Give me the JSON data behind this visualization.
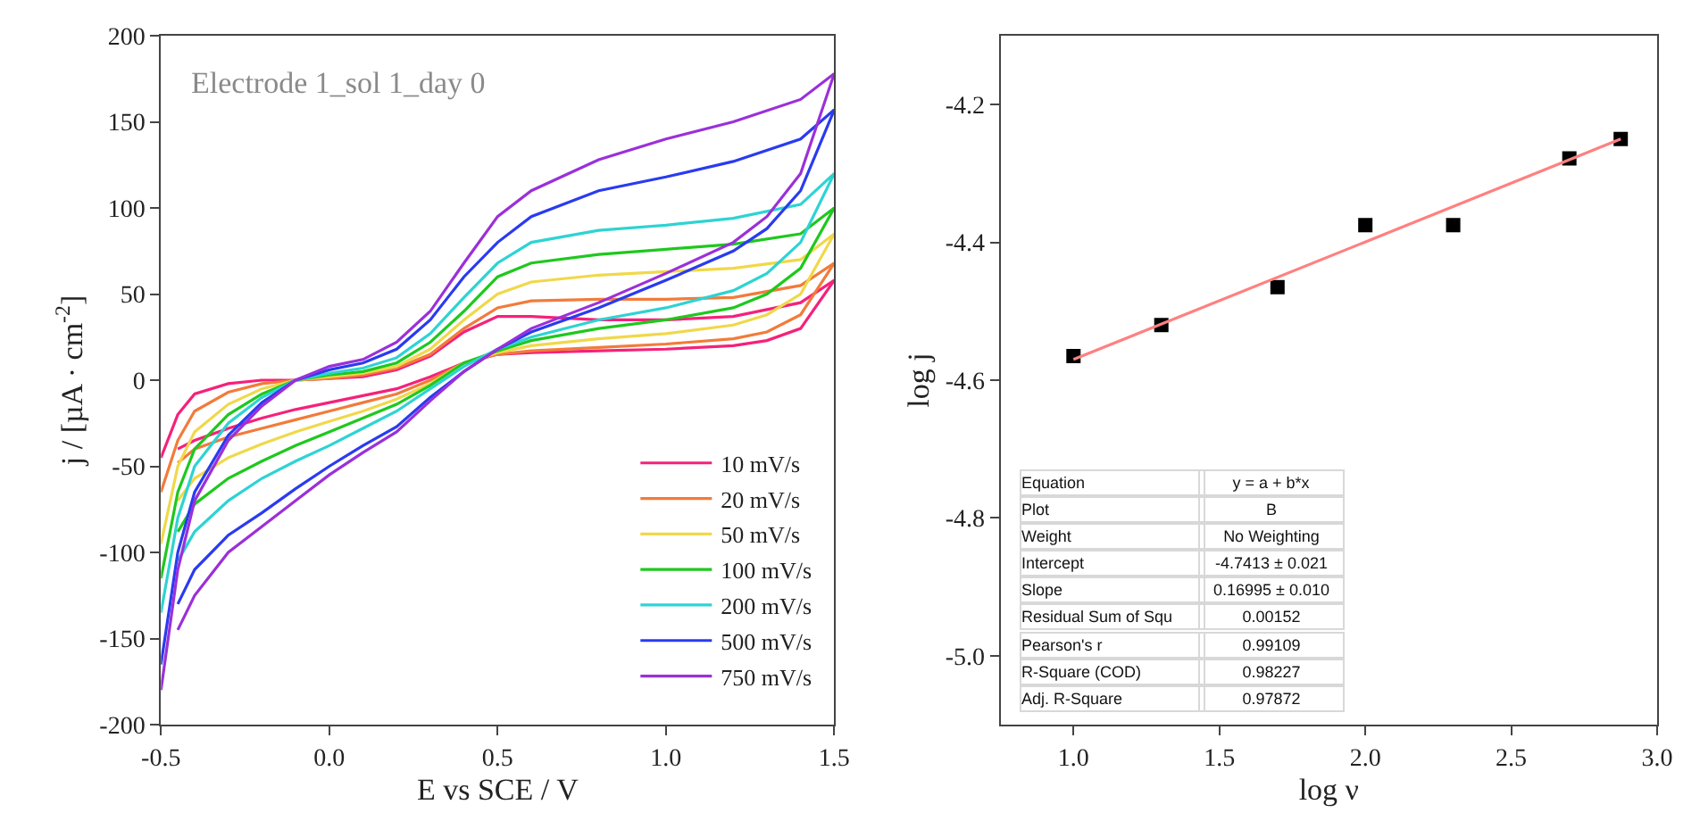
{
  "chart_data": [
    {
      "type": "line",
      "xlabel": "E vs SCE / V",
      "ylabel": "j / [µA · cm$^{-2}$]",
      "annotations": [
        "Electrode 1_sol 1_day 0"
      ],
      "xlim": [
        -0.5,
        1.5
      ],
      "xticks": [
        {
          "value": -0.5,
          "label": "-0.5"
        },
        {
          "value": 0,
          "label": "0.0"
        },
        {
          "value": 0.5,
          "label": "0.5"
        },
        {
          "value": 1,
          "label": "1.0"
        },
        {
          "value": 1.5,
          "label": "1.5"
        }
      ],
      "ylim": [
        -200,
        200
      ],
      "yticks": [
        -200,
        -150,
        -100,
        -50,
        0,
        50,
        100,
        150,
        200
      ],
      "legend": "bottom right",
      "marker": "none",
      "line_style": "solid",
      "series": [
        {
          "name": "10 mV/s",
          "color": "#f5217a",
          "x": [
            -0.5,
            -0.45,
            -0.4,
            -0.3,
            -0.2,
            -0.1,
            0,
            0.1,
            0.2,
            0.3,
            0.4,
            0.5,
            0.6,
            0.8,
            1.0,
            1.2,
            1.4,
            1.5
          ],
          "values": [
            -45,
            -20,
            -8,
            -2,
            0,
            0,
            1,
            2,
            6,
            14,
            28,
            37,
            37,
            35,
            35,
            37,
            45,
            58
          ]
        },
        {
          "color": "#f5217a",
          "x": [
            1.5,
            1.4,
            1.3,
            1.2,
            1.0,
            0.8,
            0.6,
            0.5,
            0.4,
            0.3,
            0.2,
            0.1,
            0,
            -0.1,
            -0.2,
            -0.3,
            -0.4,
            -0.45
          ],
          "values": [
            58,
            30,
            23,
            20,
            18,
            17,
            16,
            15,
            10,
            2,
            -5,
            -9,
            -13,
            -17,
            -22,
            -28,
            -35,
            -40
          ]
        },
        {
          "name": "20 mV/s",
          "color": "#f27b3a",
          "x": [
            -0.5,
            -0.45,
            -0.4,
            -0.3,
            -0.2,
            -0.1,
            0,
            0.1,
            0.2,
            0.3,
            0.4,
            0.5,
            0.6,
            0.8,
            1.0,
            1.2,
            1.4,
            1.5
          ],
          "values": [
            -65,
            -35,
            -18,
            -7,
            -2,
            0,
            1,
            3,
            7,
            15,
            30,
            42,
            46,
            47,
            47,
            48,
            55,
            68
          ]
        },
        {
          "color": "#f27b3a",
          "x": [
            1.5,
            1.4,
            1.3,
            1.2,
            1.0,
            0.8,
            0.6,
            0.5,
            0.4,
            0.3,
            0.2,
            0.1,
            0,
            -0.1,
            -0.2,
            -0.3,
            -0.4,
            -0.45
          ],
          "values": [
            68,
            38,
            28,
            24,
            21,
            19,
            17,
            15,
            10,
            0,
            -8,
            -13,
            -18,
            -23,
            -28,
            -33,
            -40,
            -48
          ]
        },
        {
          "name": "50 mV/s",
          "color": "#f0d84a",
          "x": [
            -0.5,
            -0.45,
            -0.4,
            -0.3,
            -0.2,
            -0.1,
            0,
            0.1,
            0.2,
            0.3,
            0.4,
            0.5,
            0.6,
            0.8,
            1.0,
            1.2,
            1.4,
            1.5
          ],
          "values": [
            -95,
            -50,
            -30,
            -14,
            -5,
            0,
            2,
            4,
            8,
            18,
            35,
            50,
            57,
            61,
            63,
            65,
            70,
            85
          ]
        },
        {
          "color": "#f0d84a",
          "x": [
            1.5,
            1.4,
            1.3,
            1.2,
            1.0,
            0.8,
            0.6,
            0.5,
            0.4,
            0.3,
            0.2,
            0.1,
            0,
            -0.1,
            -0.2,
            -0.3,
            -0.4,
            -0.45
          ],
          "values": [
            85,
            50,
            38,
            32,
            27,
            24,
            20,
            16,
            10,
            -2,
            -11,
            -18,
            -24,
            -30,
            -37,
            -45,
            -57,
            -70
          ]
        },
        {
          "name": "100 mV/s",
          "color": "#1ec81e",
          "x": [
            -0.5,
            -0.45,
            -0.4,
            -0.3,
            -0.2,
            -0.1,
            0,
            0.1,
            0.2,
            0.3,
            0.4,
            0.5,
            0.6,
            0.8,
            1.0,
            1.2,
            1.4,
            1.5
          ],
          "values": [
            -115,
            -65,
            -40,
            -20,
            -8,
            0,
            3,
            5,
            10,
            22,
            40,
            60,
            68,
            73,
            76,
            79,
            85,
            100
          ]
        },
        {
          "color": "#1ec81e",
          "x": [
            1.5,
            1.4,
            1.3,
            1.2,
            1.0,
            0.8,
            0.6,
            0.5,
            0.4,
            0.3,
            0.2,
            0.1,
            0,
            -0.1,
            -0.2,
            -0.3,
            -0.4,
            -0.45
          ],
          "values": [
            100,
            65,
            50,
            42,
            35,
            30,
            23,
            17,
            10,
            -3,
            -14,
            -22,
            -30,
            -38,
            -47,
            -57,
            -72,
            -88
          ]
        },
        {
          "name": "200 mV/s",
          "color": "#2ed3d3",
          "x": [
            -0.5,
            -0.45,
            -0.4,
            -0.3,
            -0.2,
            -0.1,
            0,
            0.1,
            0.2,
            0.3,
            0.4,
            0.5,
            0.6,
            0.8,
            1.0,
            1.2,
            1.4,
            1.5
          ],
          "values": [
            -135,
            -80,
            -50,
            -25,
            -10,
            0,
            4,
            7,
            13,
            27,
            48,
            68,
            80,
            87,
            90,
            94,
            102,
            120
          ]
        },
        {
          "color": "#2ed3d3",
          "x": [
            1.5,
            1.4,
            1.3,
            1.2,
            1.0,
            0.8,
            0.6,
            0.5,
            0.4,
            0.3,
            0.2,
            0.1,
            0,
            -0.1,
            -0.2,
            -0.3,
            -0.4,
            -0.45
          ],
          "values": [
            120,
            80,
            62,
            52,
            42,
            35,
            25,
            18,
            8,
            -5,
            -18,
            -28,
            -38,
            -47,
            -57,
            -70,
            -88,
            -105
          ]
        },
        {
          "name": "500 mV/s",
          "color": "#2a3bf0",
          "x": [
            -0.5,
            -0.45,
            -0.4,
            -0.3,
            -0.2,
            -0.1,
            0,
            0.1,
            0.2,
            0.3,
            0.4,
            0.5,
            0.6,
            0.8,
            1.0,
            1.2,
            1.4,
            1.5
          ],
          "values": [
            -165,
            -100,
            -65,
            -32,
            -13,
            0,
            6,
            10,
            18,
            35,
            60,
            80,
            95,
            110,
            118,
            127,
            140,
            157
          ]
        },
        {
          "color": "#2a3bf0",
          "x": [
            1.5,
            1.4,
            1.3,
            1.2,
            1.0,
            0.8,
            0.6,
            0.5,
            0.4,
            0.3,
            0.2,
            0.1,
            0,
            -0.1,
            -0.2,
            -0.3,
            -0.4,
            -0.45
          ],
          "values": [
            157,
            110,
            88,
            75,
            58,
            42,
            28,
            18,
            5,
            -10,
            -27,
            -38,
            -50,
            -63,
            -77,
            -90,
            -110,
            -130
          ]
        },
        {
          "name": "750 mV/s",
          "color": "#9b30d9",
          "x": [
            -0.5,
            -0.45,
            -0.4,
            -0.3,
            -0.2,
            -0.1,
            0,
            0.1,
            0.2,
            0.3,
            0.4,
            0.5,
            0.6,
            0.8,
            1.0,
            1.2,
            1.4,
            1.5
          ],
          "values": [
            -180,
            -110,
            -70,
            -35,
            -15,
            0,
            8,
            12,
            22,
            40,
            68,
            95,
            110,
            128,
            140,
            150,
            163,
            178
          ]
        },
        {
          "color": "#9b30d9",
          "x": [
            1.5,
            1.4,
            1.3,
            1.2,
            1.0,
            0.8,
            0.6,
            0.5,
            0.4,
            0.3,
            0.2,
            0.1,
            0,
            -0.1,
            -0.2,
            -0.3,
            -0.4,
            -0.45
          ],
          "values": [
            178,
            120,
            95,
            80,
            62,
            45,
            30,
            18,
            5,
            -12,
            -30,
            -42,
            -55,
            -70,
            -85,
            -100,
            -125,
            -145
          ]
        }
      ]
    },
    {
      "type": "scatter",
      "xlabel": "log ν",
      "ylabel": "log j",
      "annotations": [
        "Equation",
        "y = a + b*x",
        "Plot",
        "B",
        "Weight",
        "No Weighting",
        "Intercept",
        "-4.7413 ± 0.021",
        "Slope",
        "0.16995 ± 0.010",
        "Residual Sum of Squ",
        "0.00152",
        "Pearson's r",
        "0.99109",
        "R-Square (COD)",
        "0.98227",
        "Adj. R-Square",
        "0.97872"
      ],
      "xlim": [
        0.75,
        3.0
      ],
      "xticks": [
        {
          "value": 1,
          "label": "1.0"
        },
        {
          "value": 1.5,
          "label": "1.5"
        },
        {
          "value": 2,
          "label": "2.0"
        },
        {
          "value": 2.5,
          "label": "2.5"
        },
        {
          "value": 3,
          "label": "3.0"
        }
      ],
      "ylim": [
        -5.1,
        -4.1
      ],
      "yticks": [
        {
          "value": -5,
          "label": "-5.0"
        },
        -4.8,
        -4.6,
        -4.4,
        -4.2
      ],
      "legend": false,
      "marker": "square",
      "series": [
        {
          "color": "#000000",
          "x": [
            1,
            1.301,
            1.699,
            2,
            2.301,
            2.699,
            2.875
          ],
          "values": [
            -4.565,
            -4.52,
            -4.465,
            -4.375,
            -4.375,
            -4.278,
            -4.25
          ]
        },
        {
          "type": "line",
          "marker": "none",
          "color": "#ff8080",
          "x": [
            1,
            2.875
          ],
          "values": [
            -4.57,
            -4.25
          ]
        }
      ]
    }
  ]
}
